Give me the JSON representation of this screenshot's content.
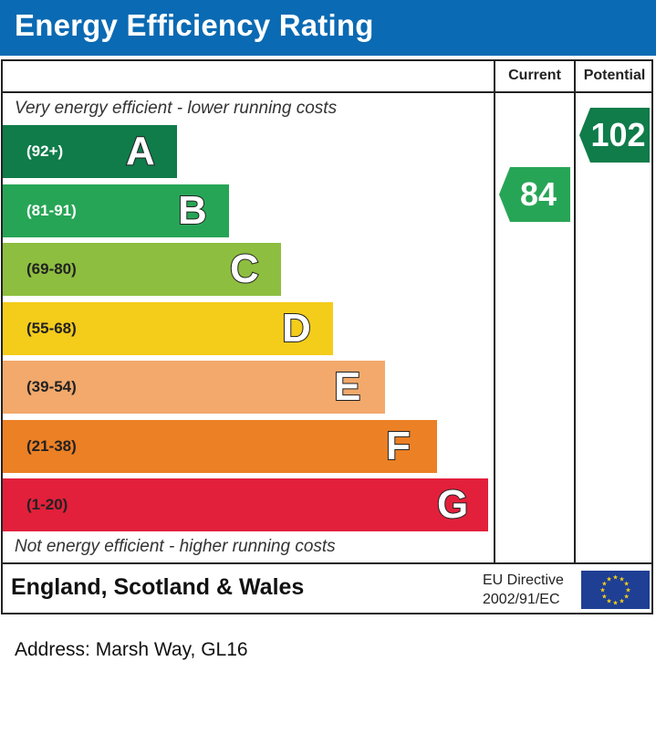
{
  "header": {
    "title": "Energy Efficiency Rating"
  },
  "columns": {
    "current": "Current",
    "potential": "Potential"
  },
  "notes": {
    "top": "Very energy efficient - lower running costs",
    "bottom": "Not energy efficient - higher running costs"
  },
  "chart_data": {
    "type": "bar",
    "title": "Energy Efficiency Rating",
    "bands": [
      {
        "letter": "A",
        "range": "(92+)",
        "color": "#0f7c4a",
        "light_text": true
      },
      {
        "letter": "B",
        "range": "(81-91)",
        "color": "#27a556",
        "light_text": true
      },
      {
        "letter": "C",
        "range": "(69-80)",
        "color": "#8dbe3f",
        "light_text": false
      },
      {
        "letter": "D",
        "range": "(55-68)",
        "color": "#f4cc1a",
        "light_text": false
      },
      {
        "letter": "E",
        "range": "(39-54)",
        "color": "#f2a96b",
        "light_text": false
      },
      {
        "letter": "F",
        "range": "(21-38)",
        "color": "#ec8025",
        "light_text": false
      },
      {
        "letter": "G",
        "range": "(1-20)",
        "color": "#e2203b",
        "light_text": false
      }
    ],
    "current": {
      "value": 84,
      "band": "B",
      "color": "#27a556"
    },
    "potential": {
      "value": 102,
      "band": "A",
      "color": "#0f7c4a"
    }
  },
  "footer": {
    "region": "England, Scotland & Wales",
    "directive_line1": "EU Directive",
    "directive_line2": "2002/91/EC",
    "flag_icon": "eu-flag-icon"
  },
  "address": "Address: Marsh Way, GL16"
}
